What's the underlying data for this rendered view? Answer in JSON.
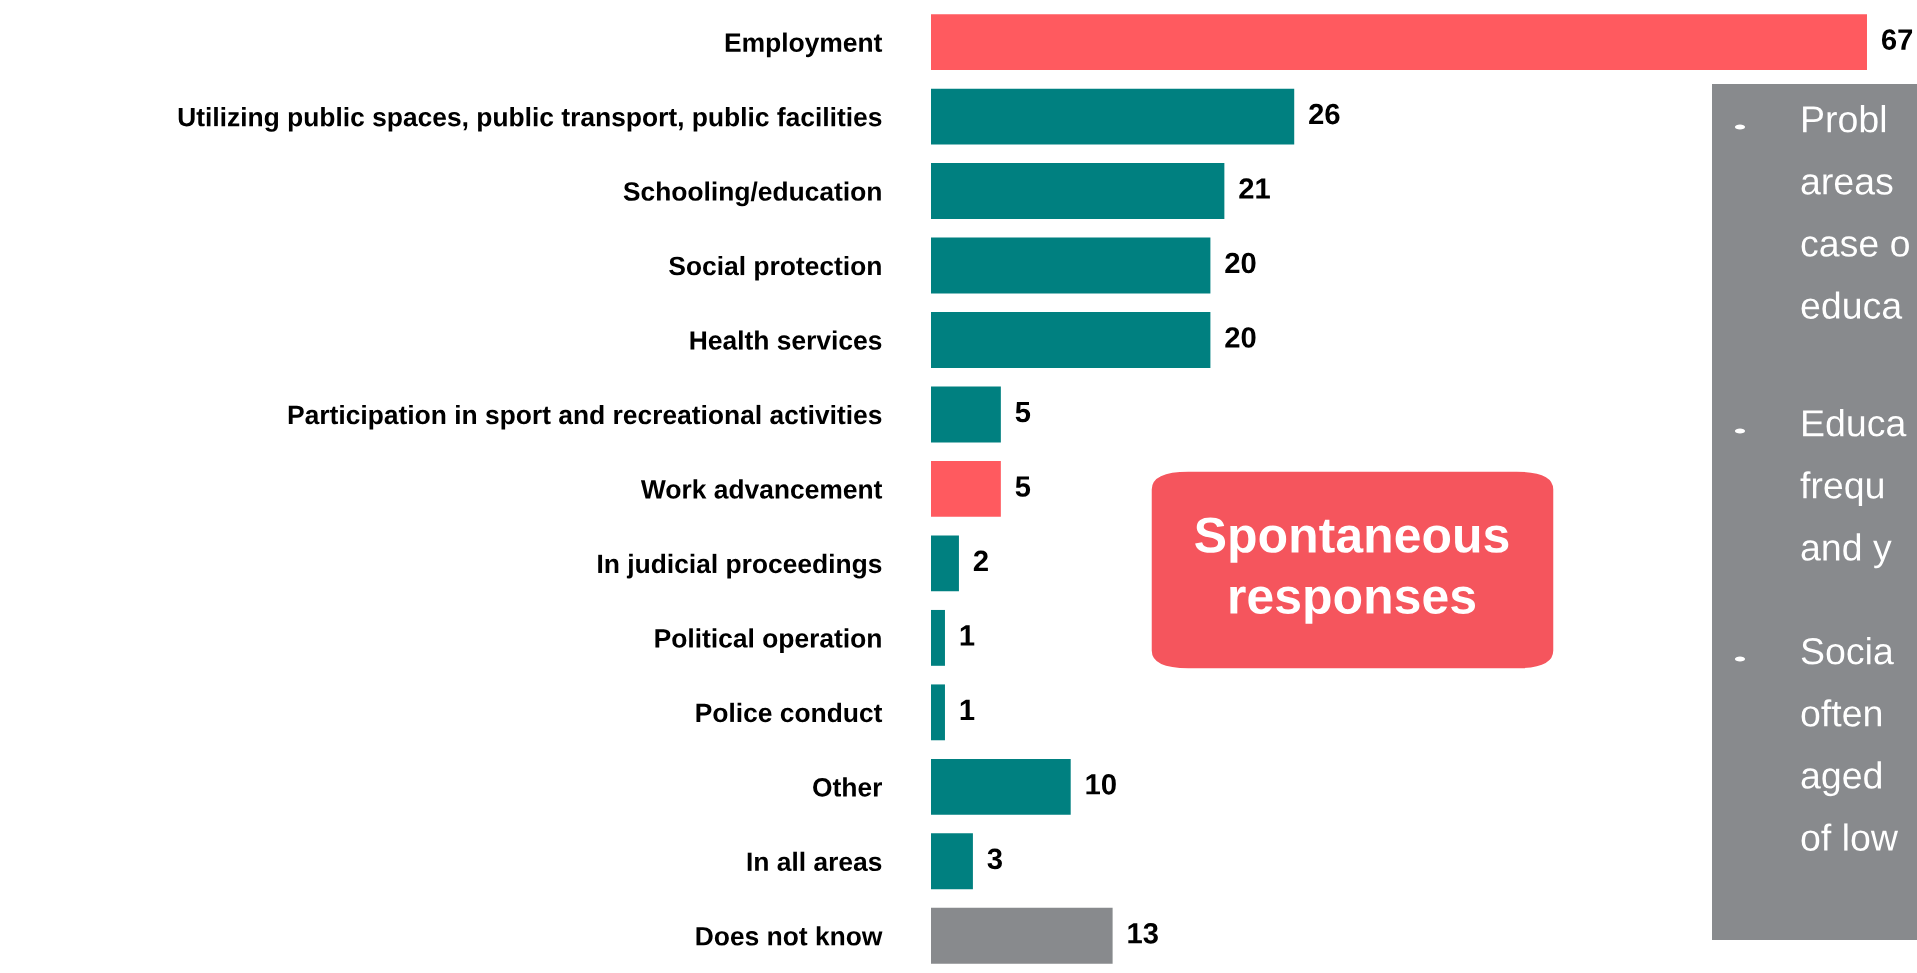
{
  "chart_data": {
    "type": "bar",
    "orientation": "horizontal",
    "data_labels": true,
    "categories": [
      "Employment",
      "Utilizing public spaces, public transport, public facilities",
      "Schooling/education",
      "Social protection",
      "Health services",
      "Participation in sport and recreational activities",
      "Work advancement",
      "In judicial proceedings",
      "Political operation",
      "Police conduct",
      "Other",
      "In all areas",
      "Does not know"
    ],
    "values": [
      67,
      26,
      21,
      20,
      20,
      5,
      5,
      2,
      1,
      1,
      10,
      3,
      13
    ],
    "colors": [
      "#ff5a5f",
      "#008080",
      "#008080",
      "#008080",
      "#008080",
      "#008080",
      "#ff5a5f",
      "#008080",
      "#008080",
      "#008080",
      "#008080",
      "#008080",
      "#888a8d"
    ],
    "annotations": [
      "Spontaneous\nresponses",
      "Probl\nareas\ncase o\neduca",
      "Educa\nfrequ\nand y",
      "Socia\noften\naged\nof low"
    ]
  }
}
